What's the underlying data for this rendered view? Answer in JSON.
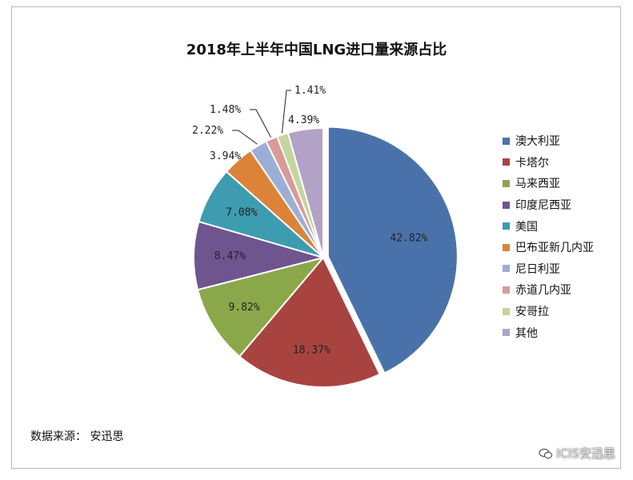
{
  "chart_data": {
    "type": "pie",
    "title": "2018年上半年中国LNG进口量来源占比",
    "slices": [
      {
        "name": "澳大利亚",
        "value": 42.82,
        "label": "42.82%",
        "color": "#4a72aa"
      },
      {
        "name": "卡塔尔",
        "value": 18.37,
        "label": "18.37%",
        "color": "#a9433f"
      },
      {
        "name": "马来西亚",
        "value": 9.82,
        "label": "9.82%",
        "color": "#8aa84a"
      },
      {
        "name": "印度尼西亚",
        "value": 8.47,
        "label": "8.47%",
        "color": "#6f5590"
      },
      {
        "name": "美国",
        "value": 7.08,
        "label": "7.08%",
        "color": "#3d9cb0"
      },
      {
        "name": "巴布亚新几内亚",
        "value": 3.94,
        "label": "3.94%",
        "color": "#dc8339"
      },
      {
        "name": "尼日利亚",
        "value": 2.22,
        "label": "2.22%",
        "color": "#9daed6"
      },
      {
        "name": "赤道几内亚",
        "value": 1.48,
        "label": "1.48%",
        "color": "#d99a99"
      },
      {
        "name": "安哥拉",
        "value": 1.41,
        "label": "1.41%",
        "color": "#c3d69b"
      },
      {
        "name": "其他",
        "value": 4.39,
        "label": "4.39%",
        "color": "#b3a2c7"
      }
    ],
    "legend_position": "right"
  },
  "footer": {
    "source": "数据来源： 安迅思",
    "watermark": "ICIS安迅思"
  }
}
